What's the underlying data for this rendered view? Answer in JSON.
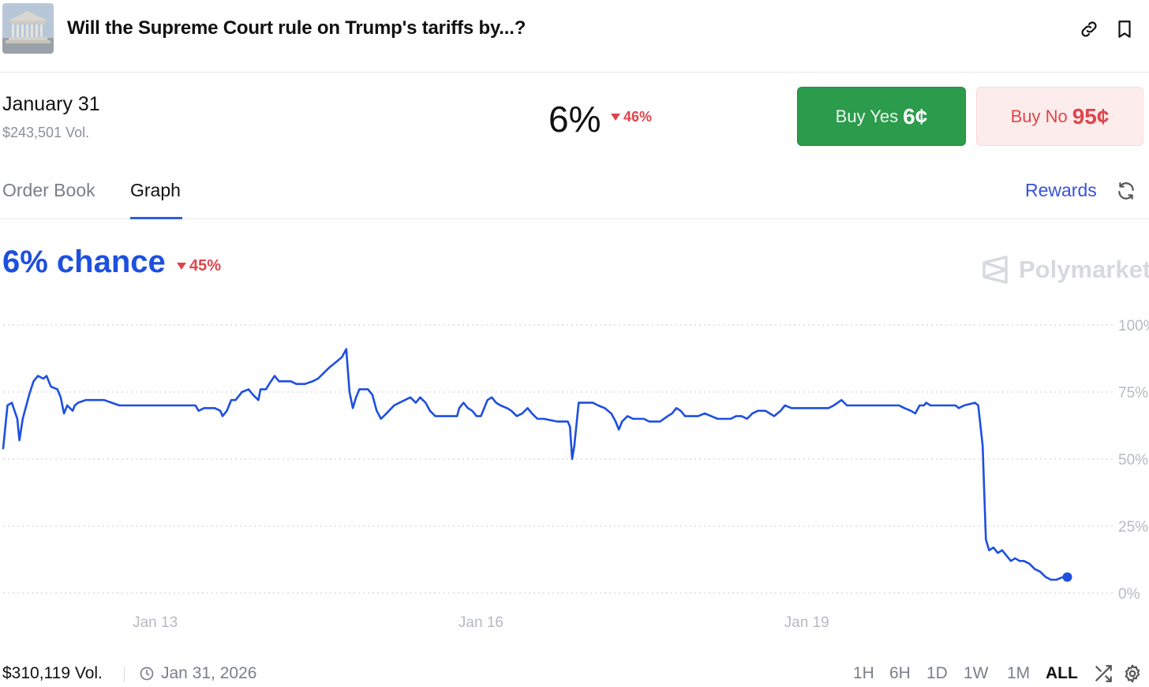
{
  "header": {
    "title": "Will the Supreme Court rule on Trump's tariffs by...?",
    "thumbnail_icon": "supreme-court-building-image",
    "link_icon": "link-icon",
    "bookmark_icon": "bookmark-icon"
  },
  "market": {
    "date": "January 31",
    "volume": "$243,501 Vol.",
    "probability": "6%",
    "change": "46%",
    "change_direction": "down",
    "buy_yes_label": "Buy Yes",
    "buy_yes_price": "6¢",
    "buy_no_label": "Buy No",
    "buy_no_price": "95¢"
  },
  "tabs": [
    {
      "label": "Order Book",
      "active": false
    },
    {
      "label": "Graph",
      "active": true
    }
  ],
  "rewards_label": "Rewards",
  "chance": {
    "label": "6% chance",
    "change": "45%",
    "change_direction": "down"
  },
  "brand": {
    "name": "Polymarket"
  },
  "footer": {
    "volume": "$310,119 Vol.",
    "end_date": "Jan 31, 2026",
    "ranges": [
      "1H",
      "6H",
      "1D",
      "1W",
      "1M",
      "ALL"
    ],
    "active_range": "ALL",
    "shuffle_icon": "shuffle-icon",
    "settings_icon": "gear-icon"
  },
  "colors": {
    "line": "#1d4fe0",
    "yes": "#2b9b4c",
    "no": "#e0454b",
    "grid": "#d2d5da",
    "tick": "#b6bac1"
  },
  "chart_data": {
    "type": "line",
    "y_tick_labels": [
      "100%",
      "75%",
      "50%",
      "25%",
      "0%"
    ],
    "y_ticks": [
      100,
      75,
      50,
      25,
      0
    ],
    "ylim": [
      0,
      100
    ],
    "x_tick_labels": [
      "Jan 13",
      "Jan 16",
      "Jan 19"
    ],
    "x_tick_days": [
      13,
      16,
      19
    ],
    "xlim": [
      11.6,
      21.6
    ],
    "grid": true,
    "last_point_marker": true,
    "series": [
      {
        "values": [
          [
            11.6,
            54
          ],
          [
            11.64,
            70
          ],
          [
            11.68,
            71
          ],
          [
            11.73,
            65
          ],
          [
            11.75,
            57
          ],
          [
            11.78,
            65
          ],
          [
            11.84,
            74
          ],
          [
            11.88,
            79
          ],
          [
            11.92,
            81
          ],
          [
            11.97,
            80
          ],
          [
            12.0,
            81
          ],
          [
            12.04,
            77
          ],
          [
            12.1,
            76
          ],
          [
            12.13,
            73
          ],
          [
            12.16,
            67
          ],
          [
            12.19,
            70
          ],
          [
            12.24,
            68
          ],
          [
            12.26,
            70
          ],
          [
            12.29,
            71
          ],
          [
            12.36,
            72
          ],
          [
            12.45,
            72
          ],
          [
            12.53,
            72
          ],
          [
            12.6,
            71
          ],
          [
            12.67,
            70
          ],
          [
            12.8,
            70
          ],
          [
            12.95,
            70
          ],
          [
            13.1,
            70
          ],
          [
            13.2,
            70
          ],
          [
            13.37,
            70
          ],
          [
            13.4,
            68
          ],
          [
            13.45,
            69
          ],
          [
            13.55,
            69
          ],
          [
            13.6,
            68
          ],
          [
            13.62,
            66
          ],
          [
            13.66,
            68
          ],
          [
            13.7,
            72
          ],
          [
            13.74,
            72
          ],
          [
            13.8,
            75
          ],
          [
            13.86,
            76
          ],
          [
            13.9,
            74
          ],
          [
            13.95,
            72
          ],
          [
            13.97,
            76
          ],
          [
            14.02,
            76
          ],
          [
            14.05,
            78
          ],
          [
            14.1,
            81
          ],
          [
            14.14,
            79
          ],
          [
            14.2,
            79
          ],
          [
            14.25,
            79
          ],
          [
            14.3,
            78
          ],
          [
            14.38,
            78
          ],
          [
            14.45,
            79
          ],
          [
            14.5,
            80
          ],
          [
            14.55,
            82
          ],
          [
            14.6,
            84
          ],
          [
            14.66,
            86
          ],
          [
            14.72,
            88
          ],
          [
            14.76,
            91
          ],
          [
            14.79,
            75
          ],
          [
            14.82,
            69
          ],
          [
            14.85,
            73
          ],
          [
            14.88,
            76
          ],
          [
            14.96,
            76
          ],
          [
            15.0,
            74
          ],
          [
            15.04,
            68
          ],
          [
            15.08,
            65
          ],
          [
            15.13,
            67
          ],
          [
            15.2,
            70
          ],
          [
            15.25,
            71
          ],
          [
            15.35,
            73
          ],
          [
            15.4,
            71
          ],
          [
            15.44,
            73
          ],
          [
            15.49,
            71
          ],
          [
            15.53,
            68
          ],
          [
            15.58,
            66
          ],
          [
            15.7,
            66
          ],
          [
            15.78,
            66
          ],
          [
            15.8,
            69
          ],
          [
            15.84,
            71
          ],
          [
            15.88,
            69
          ],
          [
            15.92,
            68
          ],
          [
            15.96,
            66
          ],
          [
            16.0,
            66
          ],
          [
            16.06,
            72
          ],
          [
            16.1,
            73
          ],
          [
            16.14,
            71
          ],
          [
            16.18,
            70
          ],
          [
            16.24,
            69
          ],
          [
            16.28,
            68
          ],
          [
            16.33,
            66
          ],
          [
            16.38,
            67
          ],
          [
            16.43,
            69
          ],
          [
            16.47,
            67
          ],
          [
            16.52,
            65
          ],
          [
            16.58,
            65
          ],
          [
            16.7,
            64
          ],
          [
            16.8,
            64
          ],
          [
            16.82,
            62
          ],
          [
            16.84,
            50
          ],
          [
            16.86,
            55
          ],
          [
            16.9,
            71
          ],
          [
            16.96,
            71
          ],
          [
            17.03,
            71
          ],
          [
            17.08,
            70
          ],
          [
            17.14,
            69
          ],
          [
            17.2,
            67
          ],
          [
            17.24,
            64
          ],
          [
            17.27,
            61
          ],
          [
            17.3,
            64
          ],
          [
            17.35,
            66
          ],
          [
            17.4,
            65
          ],
          [
            17.5,
            65
          ],
          [
            17.55,
            64
          ],
          [
            17.65,
            64
          ],
          [
            17.72,
            66
          ],
          [
            17.76,
            67
          ],
          [
            17.8,
            69
          ],
          [
            17.84,
            68
          ],
          [
            17.88,
            66
          ],
          [
            17.95,
            66
          ],
          [
            18.0,
            66
          ],
          [
            18.06,
            67
          ],
          [
            18.12,
            66
          ],
          [
            18.18,
            65
          ],
          [
            18.25,
            65
          ],
          [
            18.3,
            65
          ],
          [
            18.35,
            66
          ],
          [
            18.4,
            66
          ],
          [
            18.45,
            65
          ],
          [
            18.5,
            67
          ],
          [
            18.55,
            68
          ],
          [
            18.62,
            68
          ],
          [
            18.7,
            66
          ],
          [
            18.76,
            68
          ],
          [
            18.8,
            70
          ],
          [
            18.86,
            69
          ],
          [
            18.95,
            69
          ],
          [
            19.0,
            69
          ],
          [
            19.05,
            69
          ],
          [
            19.12,
            69
          ],
          [
            19.2,
            69
          ],
          [
            19.25,
            70
          ],
          [
            19.32,
            72
          ],
          [
            19.37,
            70
          ],
          [
            19.45,
            70
          ],
          [
            19.55,
            70
          ],
          [
            19.65,
            70
          ],
          [
            19.78,
            70
          ],
          [
            19.85,
            70
          ],
          [
            19.9,
            69
          ],
          [
            19.96,
            68
          ],
          [
            20.0,
            67
          ],
          [
            20.04,
            70
          ],
          [
            20.08,
            70
          ],
          [
            20.1,
            71
          ],
          [
            20.14,
            70
          ],
          [
            20.22,
            70
          ],
          [
            20.3,
            70
          ],
          [
            20.37,
            70
          ],
          [
            20.4,
            69
          ],
          [
            20.45,
            70
          ],
          [
            20.55,
            71
          ],
          [
            20.58,
            70
          ],
          [
            20.62,
            55
          ],
          [
            20.65,
            20
          ],
          [
            20.68,
            16
          ],
          [
            20.72,
            17
          ],
          [
            20.76,
            15
          ],
          [
            20.8,
            16
          ],
          [
            20.84,
            14
          ],
          [
            20.88,
            12
          ],
          [
            20.92,
            13
          ],
          [
            20.96,
            12
          ],
          [
            21.0,
            12
          ],
          [
            21.05,
            11
          ],
          [
            21.1,
            9
          ],
          [
            21.15,
            8
          ],
          [
            21.2,
            6
          ],
          [
            21.25,
            5
          ],
          [
            21.3,
            5
          ],
          [
            21.36,
            6
          ],
          [
            21.4,
            6
          ]
        ]
      }
    ]
  }
}
